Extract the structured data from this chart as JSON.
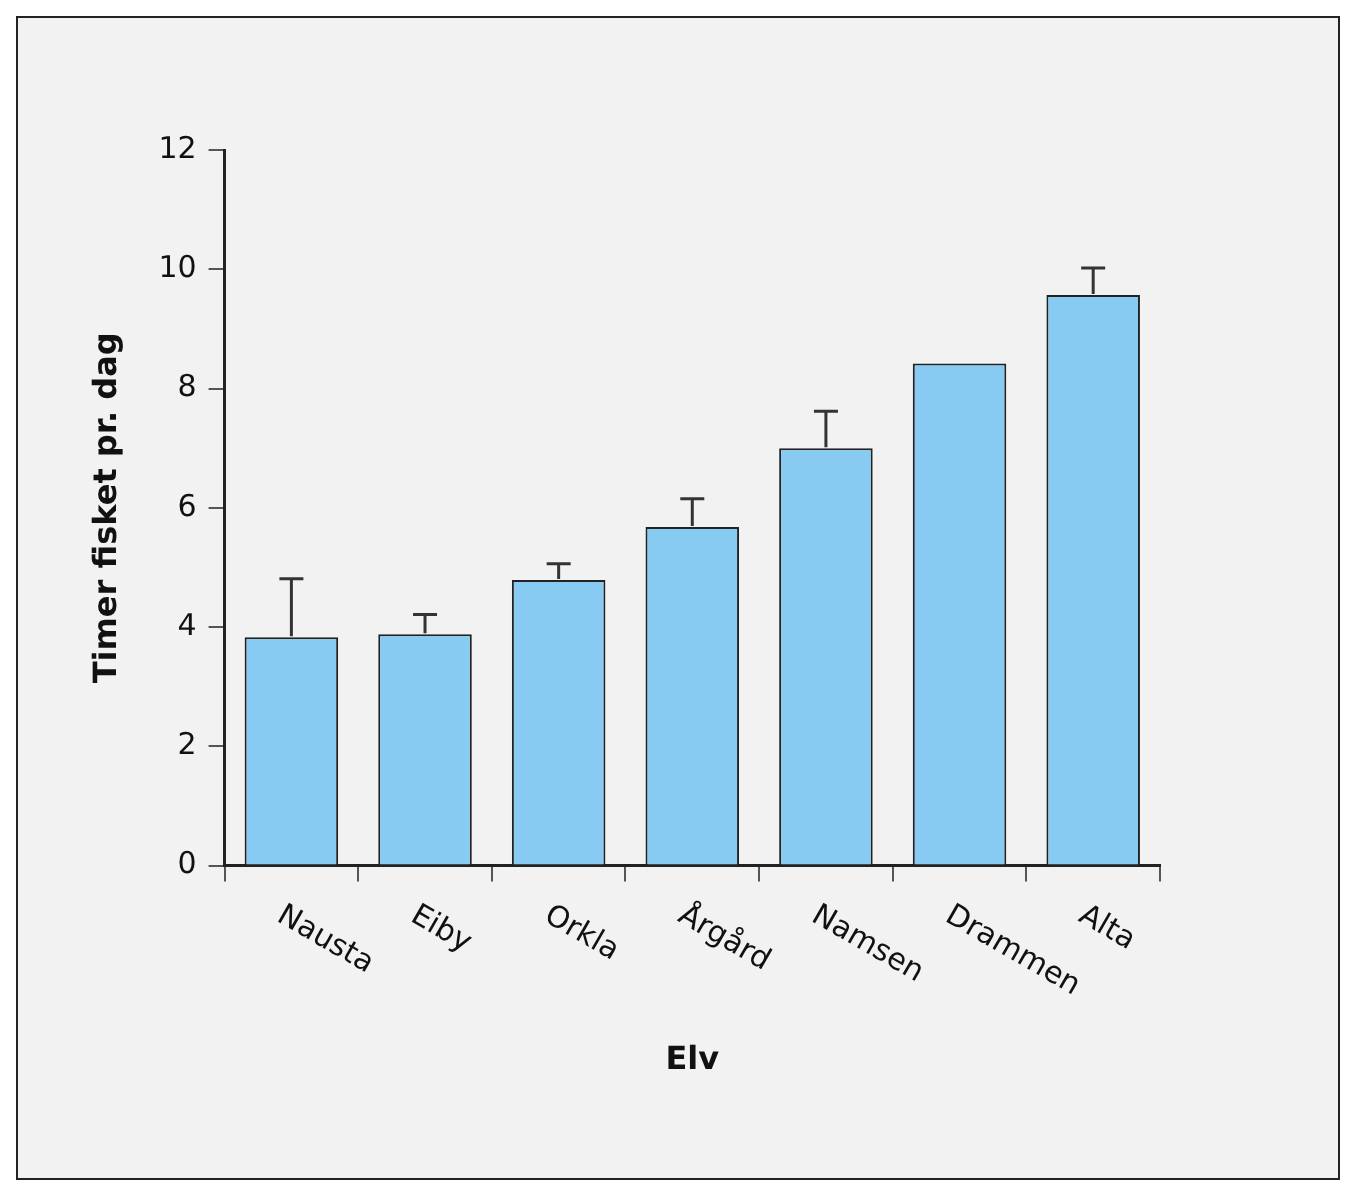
{
  "chart_data": {
    "type": "bar",
    "xlabel": "Elv",
    "ylabel": "Timer fisket pr. dag",
    "categories": [
      "Nausta",
      "Eiby",
      "Orkla",
      "Årgård",
      "Namsen",
      "Drammen",
      "Alta"
    ],
    "values": [
      3.83,
      3.88,
      4.79,
      5.68,
      7.0,
      8.42,
      9.57
    ],
    "errors": [
      [
        3.83,
        4.81
      ],
      [
        3.88,
        4.21
      ],
      [
        4.79,
        5.06
      ],
      [
        5.68,
        6.15
      ],
      [
        7.0,
        7.62
      ],
      null,
      [
        9.57,
        10.02
      ]
    ],
    "color": "#87cbf2",
    "ylim": [
      0,
      12
    ],
    "yticks": [
      0,
      2,
      4,
      6,
      8,
      10,
      12
    ],
    "grid": false,
    "legend": false
  }
}
